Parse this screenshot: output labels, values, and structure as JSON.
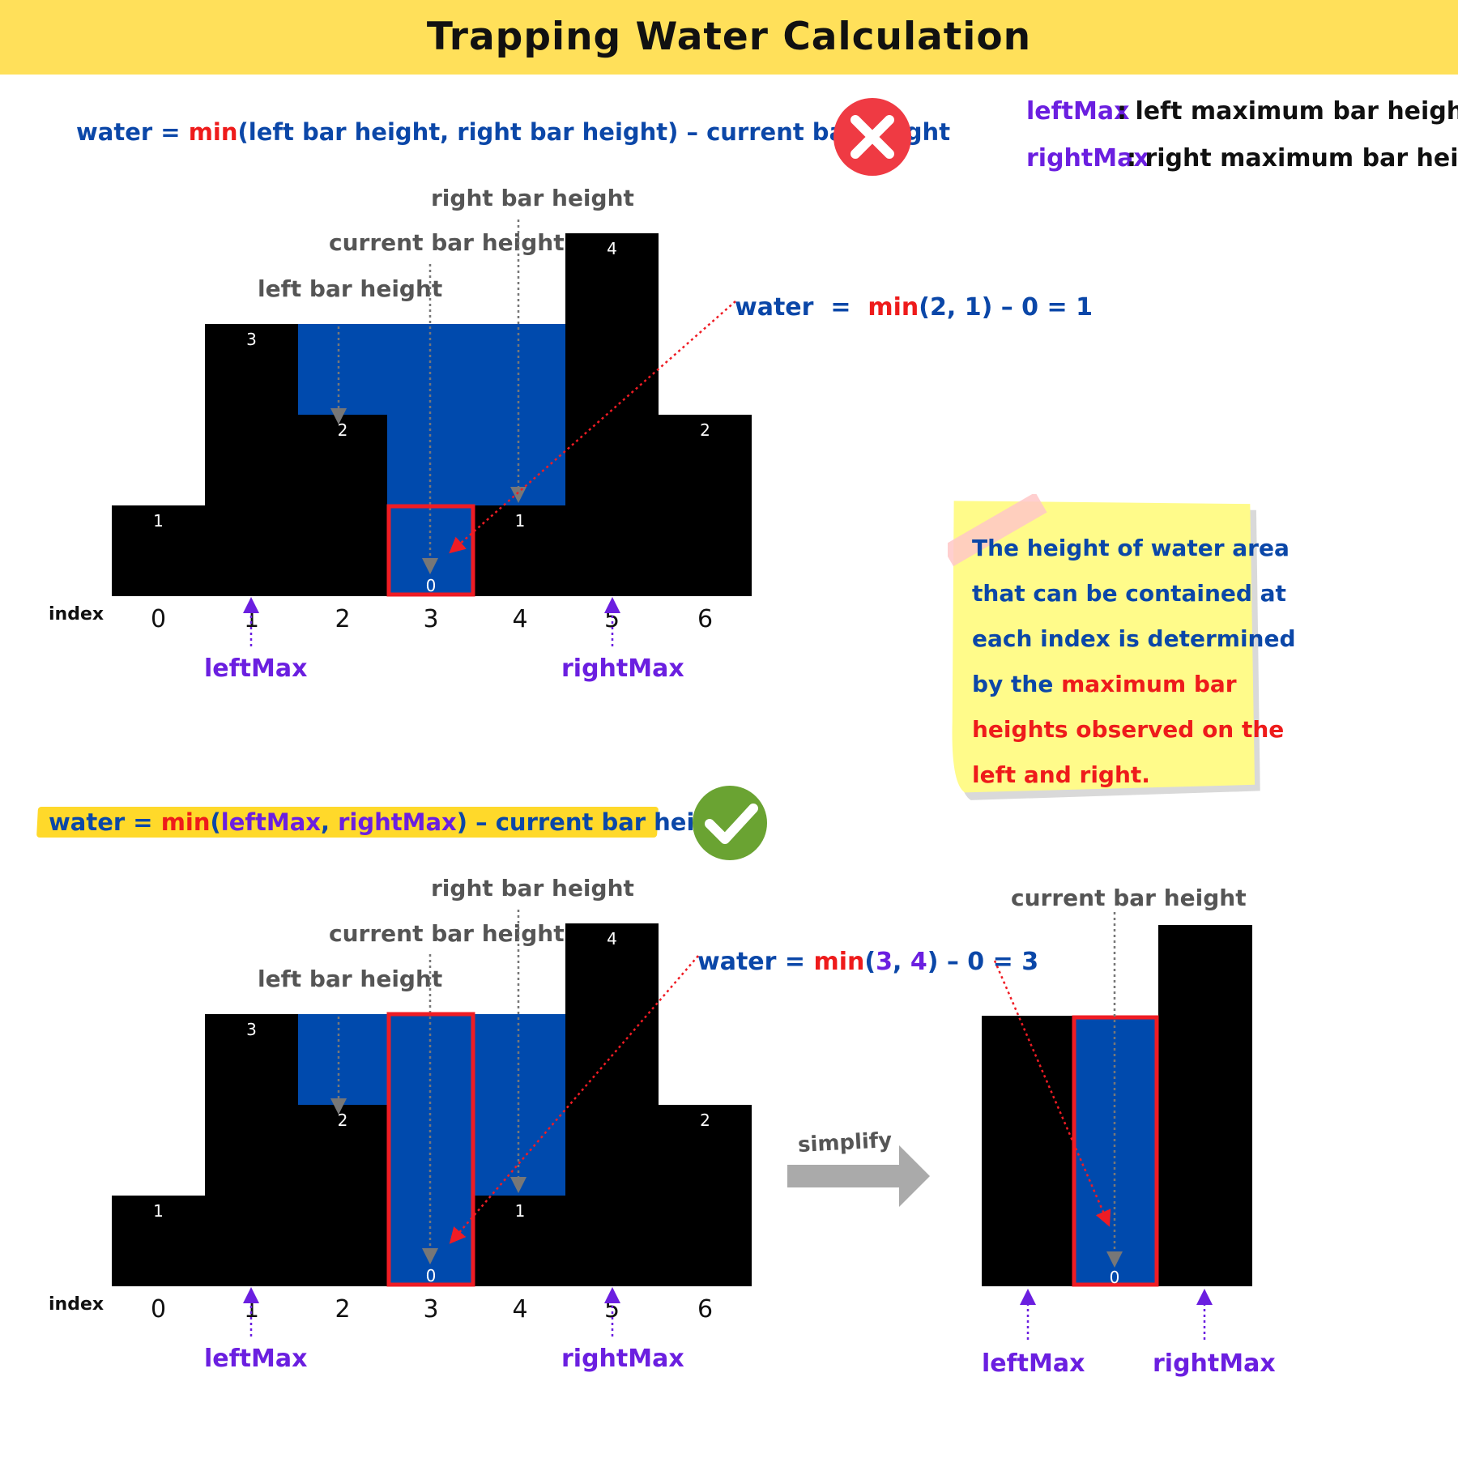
{
  "header": {
    "title": "Trapping Water Calculation",
    "bg_color": "#ffe05a"
  },
  "colors": {
    "bar": "#000000",
    "water": "#004aad",
    "highlight": "#ef1c24",
    "label_purple": "#6b1fe0",
    "guide_gray": "#777777",
    "wrong": "#ef3a43",
    "right": "#6aa332",
    "note": "#fffb8a"
  },
  "legend": [
    {
      "term": "leftMax",
      "desc": ": left maximum bar height"
    },
    {
      "term": "rightMax",
      "desc": ": right maximum bar height"
    }
  ],
  "wrong_formula": {
    "lhs": "water = ",
    "fn": "min",
    "args": "(left bar height, right bar height) – current bar height"
  },
  "wrong_icon": "cross-icon",
  "right_formula": {
    "lhs": "water = ",
    "fn": "min",
    "open": "(",
    "a": "leftMax",
    "sep": ", ",
    "b": "rightMax",
    "rest": ") – current bar height"
  },
  "right_icon": "check-icon",
  "heights": [
    1,
    3,
    2,
    0,
    1,
    4,
    2
  ],
  "index_label": "index",
  "indices": [
    "0",
    "1",
    "2",
    "3",
    "4",
    "5",
    "6"
  ],
  "guide_labels": {
    "right": "right bar height",
    "current": "current bar height",
    "left": "left bar height"
  },
  "markers": {
    "left": "leftMax",
    "right": "rightMax"
  },
  "calc_top": {
    "lhs": "water",
    "eq": "=",
    "fn": "min",
    "args": "(2, 1)",
    "rest": " – 0 = 1"
  },
  "calc_bottom": {
    "lhs": "water = ",
    "fn": "min",
    "open": "(",
    "a": "3",
    "sep": ", ",
    "b": "4",
    "close": ")",
    "rest": " – 0 = 3"
  },
  "simplify": {
    "label": "simplify",
    "current_label": "current bar height",
    "value": "0",
    "left": "leftMax",
    "right": "rightMax"
  },
  "note": {
    "blue_lines": [
      "The height of water area",
      "that can be contained at",
      "each index is determined"
    ],
    "by": "by the ",
    "red1": "maximum bar",
    "red2": "heights observed on the",
    "red3": "left and right."
  }
}
